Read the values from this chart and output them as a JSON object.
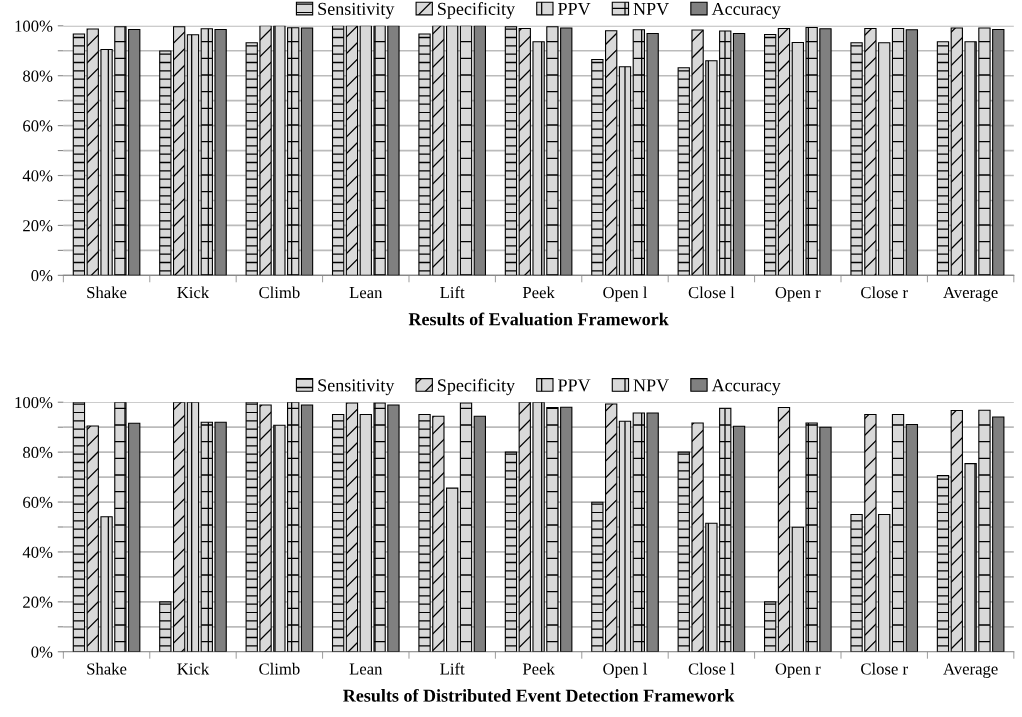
{
  "chart_data": [
    {
      "type": "bar",
      "title": "Results of Evaluation Framework",
      "categories": [
        "Shake",
        "Kick",
        "Climb",
        "Lean",
        "Lift",
        "Peek",
        "Open l",
        "Close l",
        "Open r",
        "Close r",
        "Average"
      ],
      "series": [
        {
          "name": "Sensitivity",
          "color": "#000000",
          "values": [
            96.7,
            89.9,
            93.2,
            100,
            96.7,
            99.6,
            86.5,
            83.2,
            96.5,
            93.2,
            93.6
          ]
        },
        {
          "name": "Specificity",
          "color": "#000000",
          "values": [
            98.7,
            99.6,
            100,
            100,
            100,
            98.9,
            98,
            98.3,
            98.9,
            98.9,
            99.1
          ]
        },
        {
          "name": "PPV",
          "color": "#000000",
          "values": [
            90.5,
            96.4,
            100,
            100,
            100,
            93.6,
            83.6,
            86,
            93.3,
            93.2,
            93.6
          ]
        },
        {
          "name": "NPV",
          "color": "#000000",
          "values": [
            99.6,
            98.8,
            99.2,
            100,
            100,
            99.6,
            98.4,
            97.9,
            99.3,
            98.9,
            99.1
          ]
        },
        {
          "name": "Accuracy",
          "color": "#808080",
          "values": [
            98.5,
            98.5,
            99.1,
            100,
            100,
            99.1,
            96.9,
            96.9,
            98.8,
            98.4,
            98.5
          ]
        }
      ],
      "ylim": [
        0,
        100
      ],
      "yticks": [
        {
          "value": 0,
          "label": "0%"
        },
        {
          "value": 10,
          "label": null
        },
        {
          "value": 20,
          "label": "20%"
        },
        {
          "value": 30,
          "label": null
        },
        {
          "value": 40,
          "label": "40%"
        },
        {
          "value": 50,
          "label": null
        },
        {
          "value": 60,
          "label": "60%"
        },
        {
          "value": 70,
          "label": null
        },
        {
          "value": 80,
          "label": "80%"
        },
        {
          "value": 90,
          "label": null
        },
        {
          "value": 100,
          "label": "100%"
        }
      ],
      "grid": "y",
      "legend": "top"
    },
    {
      "type": "bar",
      "title": "Results of Distributed Event Detection Framework",
      "categories": [
        "Shake",
        "Kick",
        "Climb",
        "Lean",
        "Lift",
        "Peek",
        "Open l",
        "Close l",
        "Open r",
        "Close r",
        "Average"
      ],
      "series": [
        {
          "name": "Sensitivity",
          "color": "#000000",
          "values": [
            100,
            20,
            100,
            95.1,
            95.1,
            80,
            59.9,
            80,
            20,
            55,
            70.6
          ]
        },
        {
          "name": "Specificity",
          "color": "#000000",
          "values": [
            90.5,
            100,
            98.9,
            99.7,
            94.4,
            100,
            99.3,
            91.7,
            97.9,
            95.1,
            96.7
          ]
        },
        {
          "name": "PPV",
          "color": "#000000",
          "values": [
            54.1,
            100,
            90.8,
            95.1,
            65.6,
            100,
            92.4,
            51.5,
            49.9,
            55,
            75.4
          ]
        },
        {
          "name": "NPV",
          "color": "#000000",
          "values": [
            100,
            92,
            100,
            99.7,
            99.7,
            97.9,
            95.7,
            97.6,
            91.7,
            95.1,
            96.8
          ]
        },
        {
          "name": "Accuracy",
          "color": "#808080",
          "values": [
            91.6,
            92,
            98.9,
            98.9,
            94.4,
            98,
            95.7,
            90.4,
            90,
            91.1,
            94.1
          ]
        }
      ],
      "ylim": [
        0,
        100
      ],
      "yticks": [
        {
          "value": 0,
          "label": "0%"
        },
        {
          "value": 10,
          "label": null
        },
        {
          "value": 20,
          "label": "20%"
        },
        {
          "value": 30,
          "label": null
        },
        {
          "value": 40,
          "label": "40%"
        },
        {
          "value": 50,
          "label": null
        },
        {
          "value": 60,
          "label": "60%"
        },
        {
          "value": 70,
          "label": null
        },
        {
          "value": 80,
          "label": "80%"
        },
        {
          "value": 90,
          "label": null
        },
        {
          "value": 100,
          "label": "100%"
        }
      ],
      "grid": "y",
      "legend": "top"
    }
  ]
}
